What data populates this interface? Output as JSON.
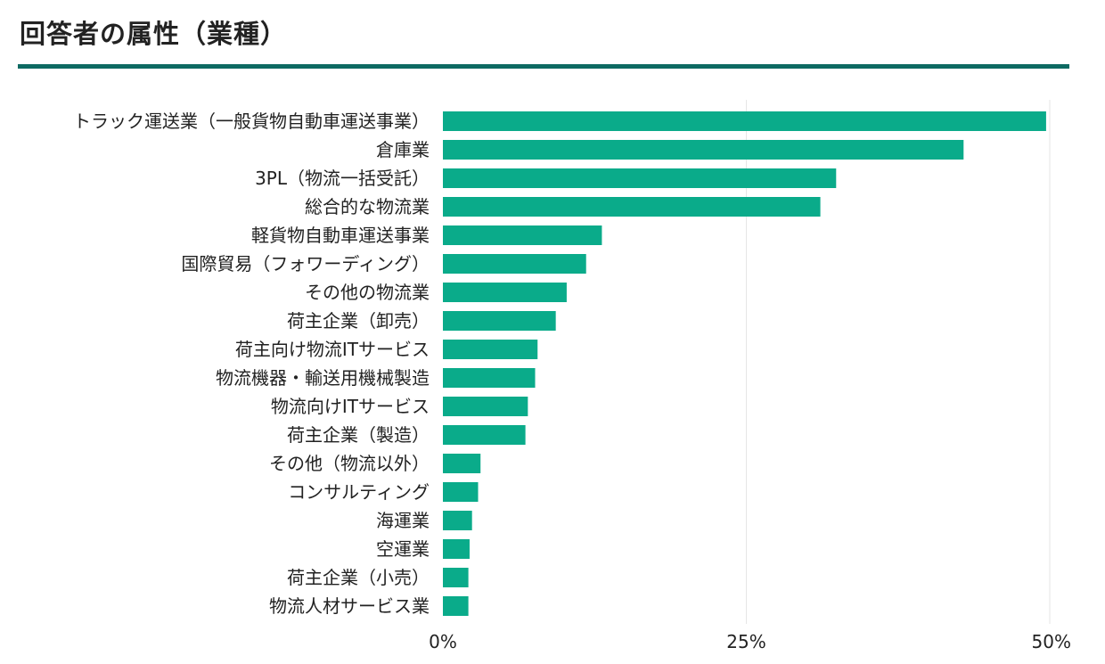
{
  "page_title": "回答者の属性（業種）",
  "colors": {
    "bar": "#0aab8a",
    "rule": "#0d6a62",
    "grid": "#e6e6e6"
  },
  "chart_data": {
    "type": "bar",
    "orientation": "horizontal",
    "title": "回答者の属性（業種）",
    "xlabel": "",
    "ylabel": "",
    "xlim": [
      0,
      50
    ],
    "unit": "%",
    "grid": true,
    "categories": [
      "トラック運送業（一般貨物自動車運送事業）",
      "倉庫業",
      "3PL（物流一括受託）",
      "総合的な物流業",
      "軽貨物自動車運送事業",
      "国際貿易（フォワーディング）",
      "その他の物流業",
      "荷主企業（卸売）",
      "荷主向け物流ITサービス",
      "物流機器・輸送用機械製造",
      "物流向けITサービス",
      "荷主企業（製造）",
      "その他（物流以外）",
      "コンサルティング",
      "海運業",
      "空運業",
      "荷主企業（小売）",
      "物流人材サービス業"
    ],
    "values": [
      49.7,
      42.9,
      32.4,
      31.1,
      13.1,
      11.8,
      10.2,
      9.3,
      7.8,
      7.6,
      7.0,
      6.8,
      3.1,
      2.9,
      2.4,
      2.2,
      2.1,
      2.1
    ],
    "ticks": [
      0,
      25,
      50
    ],
    "tick_labels": [
      "0%",
      "25%",
      "50%"
    ]
  }
}
